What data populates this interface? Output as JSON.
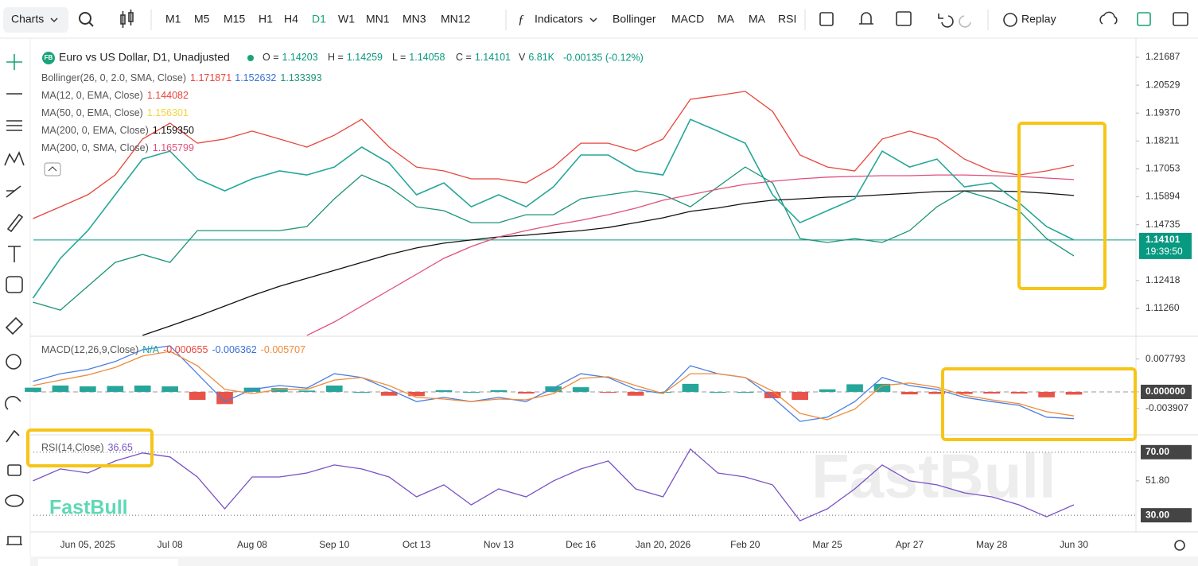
{
  "toolbar": {
    "charts": "Charts",
    "timeframes": [
      "M1",
      "M5",
      "M15",
      "H1",
      "H4",
      "D1",
      "W1",
      "MN1",
      "MN3",
      "MN12"
    ],
    "active": "D1",
    "indicators": "Indicators",
    "studies": [
      "Bollinger",
      "MACD",
      "MA",
      "MA",
      "RSI"
    ],
    "replay": "Replay"
  },
  "legend": {
    "badge": "FB",
    "symbol": "Euro vs US Dollar, D1, Unadjusted",
    "ohlc": [
      {
        "label": "O =",
        "value": "1.14203"
      },
      {
        "label": "H =",
        "value": "1.14259"
      },
      {
        "label": "L =",
        "value": "1.14058"
      },
      {
        "label": "C =",
        "value": "1.14101"
      }
    ],
    "volume": {
      "label": "V",
      "value": "6.81K"
    },
    "change": "-0.00135 (-0.12%)",
    "indicators": [
      {
        "name": "Bollinger(26, 0, 2.0, SMA, Close)",
        "values": [
          {
            "text": "1.171871",
            "color": "#e8453c"
          },
          {
            "text": "1.152632",
            "color": "#3a6fd8"
          },
          {
            "text": "1.133393",
            "color": "#1a9478"
          }
        ]
      },
      {
        "name": "MA(12, 0, EMA, Close)",
        "values": [
          {
            "text": "1.144082",
            "color": "#e8453c"
          }
        ]
      },
      {
        "name": "MA(50, 0, EMA, Close)",
        "values": [
          {
            "text": "1.156301",
            "color": "#f2d43c"
          }
        ]
      },
      {
        "name": "MA(200, 0, EMA, Close)",
        "values": [
          {
            "text": "1.159350",
            "color": "#111111"
          }
        ]
      },
      {
        "name": "MA(200, 0, SMA, Close)",
        "values": [
          {
            "text": "1.165799",
            "color": "#e0507a"
          }
        ]
      }
    ],
    "macd": {
      "name": "MACD(12,26,9,Close)",
      "values": [
        {
          "text": "N/A",
          "color": "#26a69a"
        },
        {
          "text": "-0.000655",
          "color": "#e8453c"
        },
        {
          "text": "-0.006362",
          "color": "#3a6fd8"
        },
        {
          "text": "-0.005707",
          "color": "#f08a3c"
        }
      ]
    },
    "rsi": {
      "name": "RSI(14,Close)",
      "values": [
        {
          "text": "36.65",
          "color": "#7a52c4"
        }
      ]
    }
  },
  "watermark": "FastBull",
  "chart_data": [
    {
      "type": "line",
      "categories": [
        null,
        null,
        "Jun 05, 2025",
        null,
        null,
        "Jul 08",
        null,
        null,
        "Aug 08",
        null,
        null,
        "Sep 10",
        null,
        null,
        "Oct 13",
        null,
        null,
        "Nov 13",
        null,
        null,
        "Dec 16",
        null,
        null,
        "Jan 20, 2026",
        null,
        null,
        "Feb 20",
        null,
        null,
        "Mar 25",
        null,
        null,
        "Apr 27",
        null,
        null,
        "May 28",
        null,
        null,
        "Jun 30"
      ],
      "series": [
        {
          "color": "#e8453c",
          "values": [
            1.1499,
            1.1548,
            1.1598,
            1.168,
            1.1829,
            1.1895,
            1.1812,
            1.1829,
            1.1862,
            1.1829,
            1.1796,
            1.1845,
            1.1911,
            1.1796,
            1.1713,
            1.1697,
            1.1664,
            1.1664,
            1.1647,
            1.1713,
            1.1812,
            1.1812,
            1.1779,
            1.1829,
            1.1994,
            1.201,
            1.2027,
            1.1944,
            1.1763,
            1.1713,
            1.1697,
            1.1829,
            1.1862,
            1.1829,
            1.1746,
            1.1697,
            1.168,
            1.1697,
            1.172
          ]
        },
        {
          "color": "#1a9478",
          "values": [
            1.1152,
            1.1119,
            1.1218,
            1.1317,
            1.135,
            1.1317,
            1.1449,
            1.1449,
            1.1449,
            1.1449,
            1.1466,
            1.1581,
            1.168,
            1.1631,
            1.1548,
            1.1532,
            1.1482,
            1.1482,
            1.1515,
            1.1515,
            1.1581,
            1.1598,
            1.1614,
            1.1598,
            1.1548,
            1.1631,
            1.1713,
            1.1647,
            1.1416,
            1.14,
            1.1416,
            1.14,
            1.1449,
            1.1548,
            1.1614,
            1.1581,
            1.1532,
            1.1416,
            1.1344
          ]
        },
        {
          "color": "#111111",
          "values": [
            null,
            null,
            null,
            null,
            1.1014,
            1.1053,
            1.1093,
            1.1136,
            1.1179,
            1.1218,
            1.1251,
            1.1284,
            1.1317,
            1.135,
            1.1377,
            1.1397,
            1.141,
            1.1423,
            1.143,
            1.144,
            1.1449,
            1.1462,
            1.1482,
            1.1502,
            1.1529,
            1.1543,
            1.1562,
            1.1575,
            1.1581,
            1.1588,
            1.1591,
            1.1598,
            1.1604,
            1.1611,
            1.1614,
            1.1614,
            1.1611,
            1.1604,
            1.1595
          ]
        },
        {
          "color": "#e0507a",
          "values": [
            null,
            null,
            null,
            null,
            null,
            null,
            null,
            null,
            null,
            null,
            1.1014,
            1.107,
            1.1136,
            1.1202,
            1.1268,
            1.1334,
            1.1383,
            1.1423,
            1.1449,
            1.1472,
            1.1492,
            1.1515,
            1.1542,
            1.1575,
            1.1598,
            1.1621,
            1.1641,
            1.1654,
            1.1664,
            1.1671,
            1.1674,
            1.1677,
            1.1677,
            1.168,
            1.168,
            1.1677,
            1.1674,
            1.1667,
            1.1661
          ]
        },
        {
          "color": "#26a69a",
          "values": [
            1.1169,
            1.1334,
            1.1449,
            1.1598,
            1.1746,
            1.1779,
            1.1664,
            1.1614,
            1.1664,
            1.1697,
            1.168,
            1.1713,
            1.1796,
            1.173,
            1.1598,
            1.1647,
            1.1548,
            1.1598,
            1.1548,
            1.1631,
            1.1763,
            1.1763,
            1.1697,
            1.168,
            1.1911,
            1.1862,
            1.1812,
            1.1598,
            1.1482,
            1.1532,
            1.1581,
            1.1779,
            1.1713,
            1.1746,
            1.1631,
            1.1647,
            1.1565,
            1.1466,
            1.14101
          ]
        }
      ],
      "ylim": [
        1.10138,
        1.22248
      ],
      "yticks": [
        1.21687,
        1.20529,
        {
          "value": 1.1937,
          "label": "1.19370"
        },
        1.18211,
        1.17053,
        1.15894,
        1.14735,
        1.12418,
        {
          "value": 1.1126,
          "label": "1.11260"
        }
      ],
      "last_price": 1.14101,
      "last_color": "#089981",
      "countdown": "19:39:50"
    },
    {
      "type": "line",
      "series": [
        {
          "color": "#4a7fe0",
          "values": [
            0.0025,
            0.0043,
            0.0053,
            0.0072,
            0.01,
            0.0109,
            0.0043,
            -0.0023,
            0.0006,
            0.0015,
            0.0009,
            0.0043,
            0.0034,
            0.0006,
            -0.0023,
            -0.0013,
            -0.0023,
            -0.0013,
            -0.0023,
            0.0009,
            0.0043,
            0.0034,
            0.0006,
            -0.0004,
            0.0062,
            0.0043,
            0.0034,
            -0.0013,
            -0.007,
            -0.006,
            -0.0023,
            0.0034,
            0.0015,
            0.0006,
            -0.0013,
            -0.0023,
            -0.0032,
            -0.006,
            -0.006362
          ]
        },
        {
          "color": "#f08a3c",
          "values": [
            0.0015,
            0.0028,
            0.004,
            0.0058,
            0.0085,
            0.0096,
            0.0062,
            0.0006,
            -0.0004,
            0.0006,
            0.0006,
            0.0028,
            0.0034,
            0.0015,
            -0.0013,
            -0.0017,
            -0.0023,
            -0.0017,
            -0.0019,
            -0.0004,
            0.0032,
            0.0036,
            0.0015,
            -0.0004,
            0.0043,
            0.0043,
            0.0034,
            0.0002,
            -0.0051,
            -0.0066,
            -0.0041,
            0.0015,
            0.0021,
            0.0011,
            -0.0008,
            -0.0019,
            -0.0028,
            -0.0047,
            -0.005707
          ]
        }
      ],
      "histogram": [
        0.001,
        0.0015,
        0.0013,
        0.0014,
        0.0015,
        0.0013,
        -0.0019,
        -0.0029,
        0.001,
        0.0009,
        0.0003,
        0.0015,
        0,
        -0.0009,
        -0.001,
        0.0004,
        0,
        0.0004,
        -0.0004,
        0.0013,
        0.0011,
        -0.0002,
        -0.0009,
        0,
        0.0019,
        0,
        0,
        -0.0015,
        -0.0019,
        0.0006,
        0.0018,
        0.0019,
        -0.0006,
        -0.0005,
        -0.0005,
        -0.0004,
        -0.0004,
        -0.0013,
        -0.000655
      ],
      "histogram_colors": [
        "#26a69a",
        "#e8544a"
      ],
      "ylim": [
        -0.01,
        0.013
      ],
      "yticks": [
        0.007793,
        {
          "value": 0,
          "label": "0.000000"
        },
        -0.003907
      ]
    },
    {
      "type": "line",
      "series": [
        {
          "color": "#7a52c4",
          "values": [
            51.8,
            59.4,
            56.8,
            64.4,
            69.5,
            67,
            54.3,
            34.1,
            54.3,
            54.3,
            56.8,
            61.9,
            59.4,
            54.3,
            41.7,
            49.3,
            36.6,
            46.7,
            41.7,
            51.8,
            59.4,
            64.4,
            46.7,
            41.7,
            72,
            56.8,
            54.3,
            49.3,
            26.5,
            34.1,
            46.7,
            61.9,
            51.8,
            49.3,
            44.2,
            41.7,
            36.6,
            29,
            36.65
          ]
        }
      ],
      "ylim": [
        20,
        80.5
      ],
      "yticks": [
        {
          "value": 70,
          "label": "70.00"
        },
        {
          "value": 51.8,
          "label": "51.80"
        },
        {
          "value": 30,
          "label": "30.00"
        }
      ]
    }
  ]
}
